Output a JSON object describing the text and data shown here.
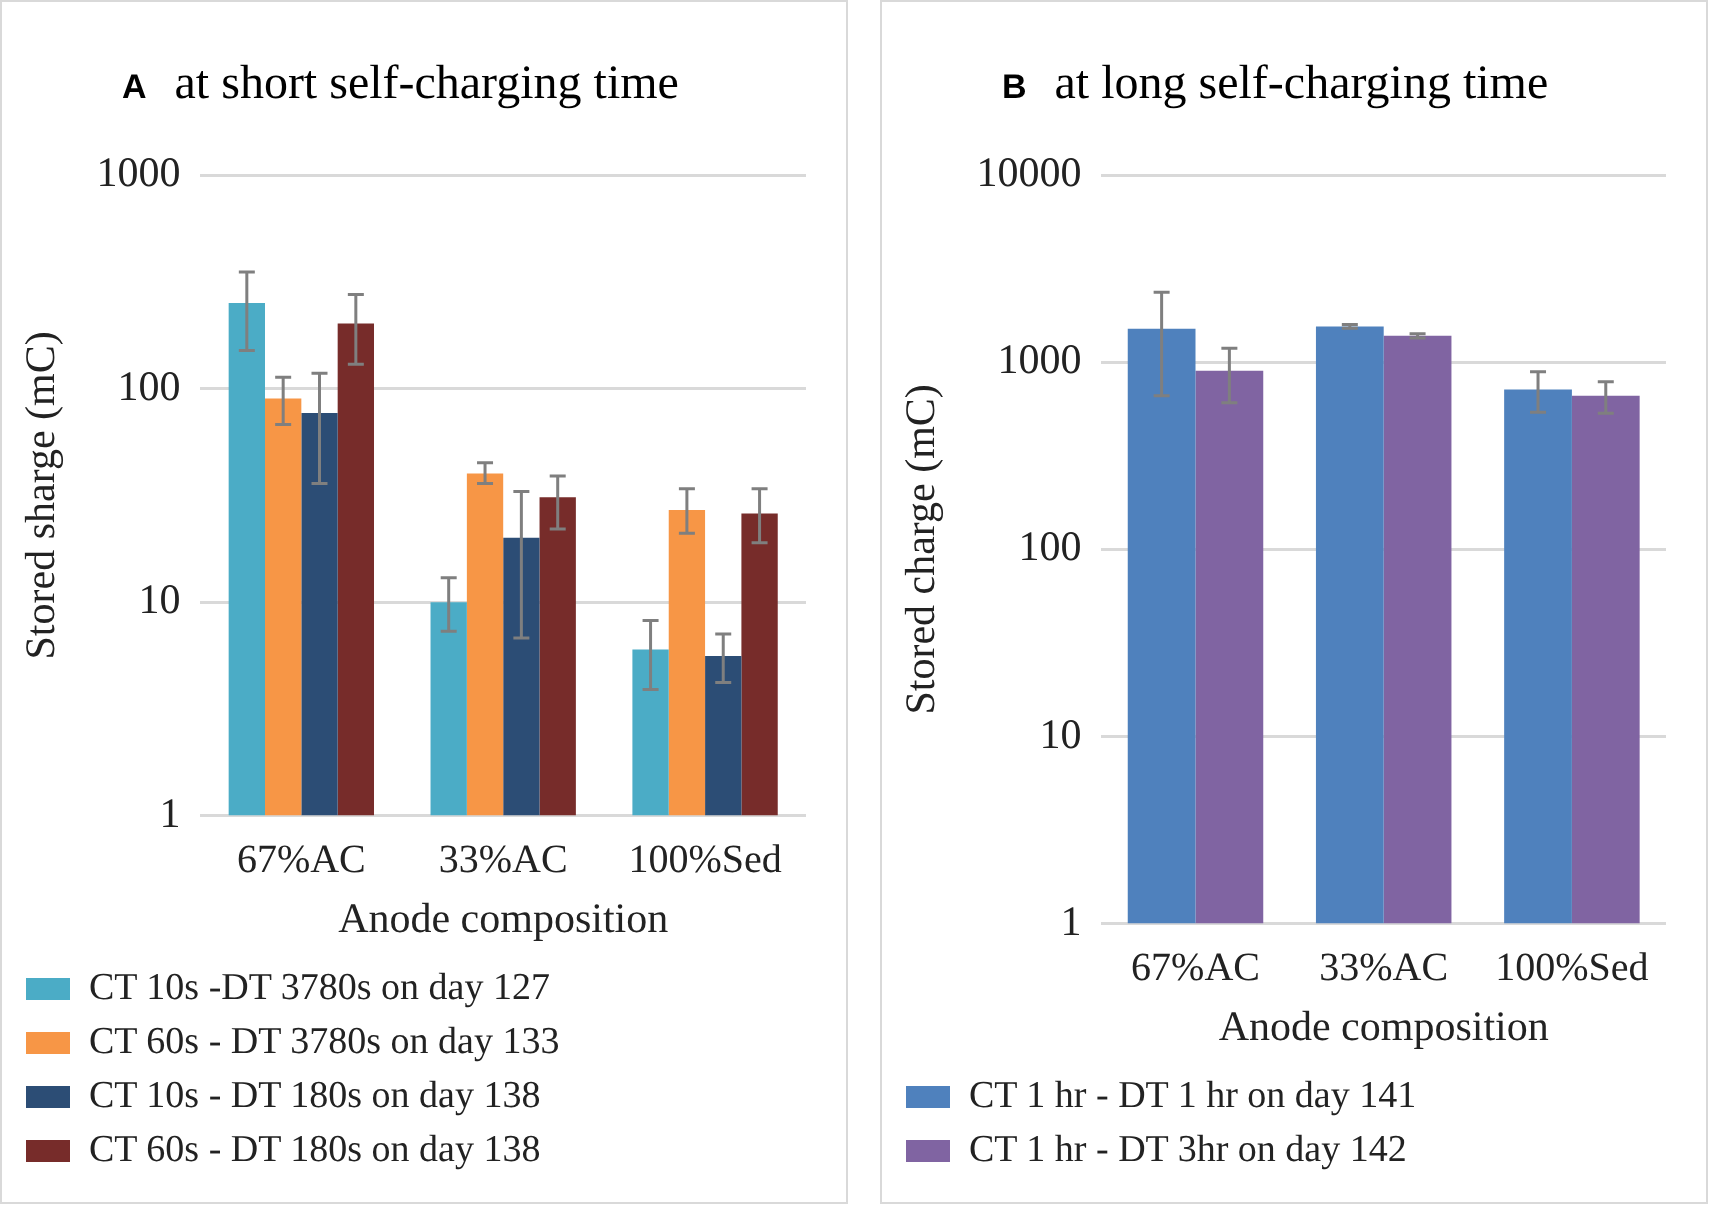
{
  "chart_data": [
    {
      "type": "bar",
      "title": "at short self-charging time",
      "annotations": [
        "A"
      ],
      "xlabel": "Anode composition",
      "ylabel": "Stored sharge (mC)",
      "categories": [
        "67%AC",
        "33%AC",
        "100%Sed"
      ],
      "log": "y",
      "ylim": [
        1,
        1000
      ],
      "yticks": [
        1,
        10,
        100,
        1000
      ],
      "grid": "y",
      "legend": "bottom",
      "series": [
        {
          "name": "CT 10s -DT 3780s on day 127",
          "color": "#4bacc6",
          "values": [
            252,
            10,
            6.0
          ],
          "errors": [
            [
              151,
              352
            ],
            [
              7.3,
              13
            ],
            [
              3.9,
              8.2
            ]
          ]
        },
        {
          "name": "CT 60s - DT 3780s on day 133",
          "color": "#f79646",
          "values": [
            90,
            40,
            27
          ],
          "errors": [
            [
              68,
              113
            ],
            [
              36,
              45
            ],
            [
              21,
              34
            ]
          ]
        },
        {
          "name": "CT 10s - DT 180s on day 138",
          "color": "#2c4d75",
          "values": [
            77,
            20,
            5.6
          ],
          "errors": [
            [
              36,
              118
            ],
            [
              6.8,
              33
            ],
            [
              4.2,
              7.1
            ]
          ]
        },
        {
          "name": "CT 60s - DT 180s on day 138",
          "color": "#772c2a",
          "values": [
            202,
            31,
            26
          ],
          "errors": [
            [
              130,
              276
            ],
            [
              22,
              39
            ],
            [
              19,
              34
            ]
          ]
        }
      ]
    },
    {
      "type": "bar",
      "title": "at long self-charging time",
      "annotations": [
        "B"
      ],
      "xlabel": "Anode composition",
      "ylabel": "Stored charge (mC)",
      "categories": [
        "67%AC",
        "33%AC",
        "100%Sed"
      ],
      "log": "y",
      "ylim": [
        1,
        10000
      ],
      "yticks": [
        1,
        10,
        100,
        1000,
        10000
      ],
      "grid": "y",
      "legend": "bottom",
      "series": [
        {
          "name": "CT 1 hr - DT 1 hr on day 141",
          "color": "#4f81bd",
          "values": [
            1510,
            1555,
            715
          ],
          "errors": [
            [
              662,
              2370
            ],
            [
              1520,
              1590
            ],
            [
              541,
              891
            ]
          ]
        },
        {
          "name": "CT 1 hr - DT 3hr on day 142",
          "color": "#8064a2",
          "values": [
            900,
            1386,
            662
          ],
          "errors": [
            [
              607,
              1188
            ],
            [
              1350,
              1420
            ],
            [
              535,
              787
            ]
          ]
        }
      ]
    }
  ]
}
